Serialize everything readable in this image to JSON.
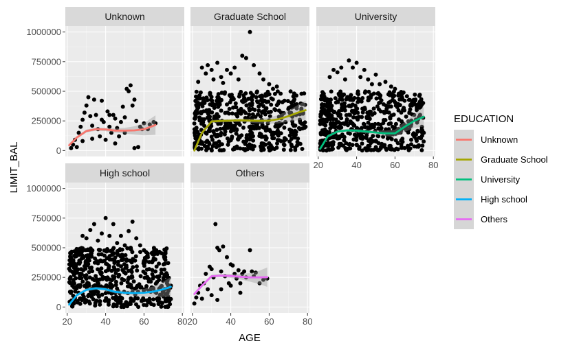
{
  "chart_data": {
    "type": "scatter",
    "xlabel": "AGE",
    "ylabel": "LIMIT_BAL",
    "xlim": [
      19,
      81
    ],
    "ylim": [
      -50000,
      1050000
    ],
    "x_ticks": [
      20,
      40,
      60,
      80
    ],
    "x_tick_labels": [
      "20",
      "40",
      "60",
      "80"
    ],
    "y_ticks": [
      0,
      250000,
      500000,
      750000,
      1000000
    ],
    "y_tick_labels": [
      "0",
      "250000",
      "500000",
      "750000",
      "1000000"
    ],
    "grid": true,
    "legend": {
      "title": "EDUCATION",
      "placement": "right",
      "entries": [
        "Unknown",
        "Graduate School",
        "University",
        "High school",
        "Others"
      ]
    },
    "series": [
      {
        "name": "Unknown",
        "color": "#F8766D",
        "age_range": [
          21,
          66
        ],
        "smooth_x": [
          21,
          25,
          30,
          35,
          40,
          45,
          50,
          55,
          60,
          66
        ],
        "smooth_y": [
          45000,
          110000,
          165000,
          180000,
          178000,
          168000,
          168000,
          170000,
          180000,
          215000
        ],
        "points": [
          [
            22,
            20000
          ],
          [
            23,
            50000
          ],
          [
            24,
            90000
          ],
          [
            25,
            30000
          ],
          [
            26,
            150000
          ],
          [
            27,
            200000
          ],
          [
            28,
            260000
          ],
          [
            29,
            320000
          ],
          [
            30,
            380000
          ],
          [
            31,
            450000
          ],
          [
            32,
            290000
          ],
          [
            33,
            210000
          ],
          [
            34,
            430000
          ],
          [
            35,
            300000
          ],
          [
            36,
            180000
          ],
          [
            37,
            120000
          ],
          [
            38,
            260000
          ],
          [
            39,
            240000
          ],
          [
            40,
            90000
          ],
          [
            41,
            330000
          ],
          [
            42,
            200000
          ],
          [
            43,
            150000
          ],
          [
            44,
            300000
          ],
          [
            45,
            270000
          ],
          [
            46,
            190000
          ],
          [
            47,
            120000
          ],
          [
            48,
            240000
          ],
          [
            49,
            370000
          ],
          [
            50,
            280000
          ],
          [
            51,
            520000
          ],
          [
            52,
            500000
          ],
          [
            53,
            550000
          ],
          [
            54,
            380000
          ],
          [
            55,
            430000
          ],
          [
            56,
            250000
          ],
          [
            57,
            30000
          ],
          [
            58,
            200000
          ],
          [
            59,
            180000
          ],
          [
            60,
            230000
          ],
          [
            62,
            180000
          ],
          [
            63,
            220000
          ],
          [
            65,
            240000
          ],
          [
            66,
            230000
          ],
          [
            33,
            100000
          ],
          [
            45,
            60000
          ],
          [
            38,
            420000
          ],
          [
            42,
            300000
          ],
          [
            50,
            150000
          ],
          [
            55,
            20000
          ],
          [
            28,
            80000
          ]
        ]
      },
      {
        "name": "Graduate School",
        "color": "#A3A500",
        "age_range": [
          21,
          79
        ],
        "smooth_x": [
          21,
          25,
          30,
          35,
          40,
          45,
          50,
          55,
          60,
          65,
          70,
          75,
          79
        ],
        "smooth_y": [
          0,
          150000,
          245000,
          250000,
          252000,
          255000,
          252000,
          250000,
          252000,
          265000,
          290000,
          320000,
          340000
        ],
        "points": [
          [
            23,
            580000
          ],
          [
            25,
            700000
          ],
          [
            27,
            650000
          ],
          [
            28,
            720000
          ],
          [
            30,
            680000
          ],
          [
            31,
            600000
          ],
          [
            33,
            740000
          ],
          [
            35,
            620000
          ],
          [
            36,
            570000
          ],
          [
            38,
            680000
          ],
          [
            40,
            650000
          ],
          [
            42,
            700000
          ],
          [
            44,
            600000
          ],
          [
            46,
            800000
          ],
          [
            48,
            780000
          ],
          [
            50,
            1000000
          ],
          [
            52,
            720000
          ],
          [
            55,
            650000
          ],
          [
            57,
            600000
          ],
          [
            60,
            560000
          ],
          [
            62,
            520000
          ],
          [
            64,
            540000
          ],
          [
            66,
            480000
          ],
          [
            68,
            420000
          ],
          [
            70,
            350000
          ],
          [
            72,
            380000
          ],
          [
            74,
            300000
          ],
          [
            76,
            260000
          ],
          [
            78,
            220000
          ],
          [
            79,
            200000
          ]
        ]
      },
      {
        "name": "University",
        "color": "#00BF7D",
        "age_range": [
          21,
          75
        ],
        "smooth_x": [
          21,
          25,
          30,
          35,
          40,
          45,
          50,
          55,
          60,
          65,
          70,
          75
        ],
        "smooth_y": [
          15000,
          120000,
          160000,
          170000,
          168000,
          160000,
          152000,
          145000,
          145000,
          200000,
          250000,
          285000
        ],
        "points": [
          [
            26,
            620000
          ],
          [
            28,
            680000
          ],
          [
            30,
            660000
          ],
          [
            32,
            700000
          ],
          [
            34,
            600000
          ],
          [
            36,
            760000
          ],
          [
            38,
            700000
          ],
          [
            40,
            740000
          ],
          [
            42,
            620000
          ],
          [
            44,
            680000
          ],
          [
            46,
            600000
          ],
          [
            48,
            560000
          ],
          [
            50,
            640000
          ],
          [
            52,
            560000
          ],
          [
            55,
            580000
          ],
          [
            58,
            540000
          ],
          [
            60,
            520000
          ],
          [
            62,
            480000
          ],
          [
            65,
            420000
          ],
          [
            68,
            380000
          ],
          [
            70,
            300000
          ],
          [
            72,
            260000
          ],
          [
            74,
            200000
          ],
          [
            75,
            150000
          ]
        ]
      },
      {
        "name": "High school",
        "color": "#00B0F6",
        "age_range": [
          21,
          74
        ],
        "smooth_x": [
          21,
          25,
          30,
          35,
          40,
          45,
          50,
          55,
          60,
          65,
          70,
          74
        ],
        "smooth_y": [
          20000,
          100000,
          145000,
          158000,
          150000,
          128000,
          120000,
          118000,
          120000,
          130000,
          150000,
          170000
        ],
        "points": [
          [
            28,
            600000
          ],
          [
            30,
            580000
          ],
          [
            32,
            650000
          ],
          [
            34,
            700000
          ],
          [
            36,
            560000
          ],
          [
            38,
            620000
          ],
          [
            40,
            750000
          ],
          [
            42,
            600000
          ],
          [
            44,
            700000
          ],
          [
            46,
            540000
          ],
          [
            48,
            600000
          ],
          [
            50,
            520000
          ],
          [
            52,
            640000
          ],
          [
            54,
            720000
          ],
          [
            56,
            580000
          ],
          [
            58,
            520000
          ],
          [
            60,
            480000
          ],
          [
            62,
            420000
          ],
          [
            64,
            380000
          ],
          [
            66,
            300000
          ],
          [
            68,
            260000
          ],
          [
            70,
            220000
          ],
          [
            72,
            200000
          ],
          [
            74,
            180000
          ]
        ]
      },
      {
        "name": "Others",
        "color": "#E76BF3",
        "age_range": [
          21,
          59
        ],
        "smooth_x": [
          21,
          25,
          30,
          35,
          40,
          45,
          50,
          55,
          59
        ],
        "smooth_y": [
          110000,
          180000,
          260000,
          265000,
          262000,
          255000,
          250000,
          250000,
          252000
        ],
        "points": [
          [
            21,
            30000
          ],
          [
            22,
            80000
          ],
          [
            23,
            120000
          ],
          [
            24,
            180000
          ],
          [
            25,
            70000
          ],
          [
            26,
            200000
          ],
          [
            27,
            280000
          ],
          [
            28,
            150000
          ],
          [
            29,
            340000
          ],
          [
            30,
            320000
          ],
          [
            31,
            250000
          ],
          [
            32,
            700000
          ],
          [
            33,
            500000
          ],
          [
            34,
            480000
          ],
          [
            35,
            300000
          ],
          [
            36,
            510000
          ],
          [
            37,
            260000
          ],
          [
            38,
            420000
          ],
          [
            39,
            200000
          ],
          [
            40,
            360000
          ],
          [
            41,
            350000
          ],
          [
            42,
            280000
          ],
          [
            43,
            240000
          ],
          [
            44,
            310000
          ],
          [
            45,
            200000
          ],
          [
            46,
            280000
          ],
          [
            47,
            300000
          ],
          [
            48,
            250000
          ],
          [
            50,
            480000
          ],
          [
            51,
            300000
          ],
          [
            52,
            260000
          ],
          [
            53,
            290000
          ],
          [
            55,
            200000
          ],
          [
            57,
            230000
          ],
          [
            59,
            240000
          ],
          [
            30,
            100000
          ],
          [
            35,
            150000
          ],
          [
            40,
            180000
          ],
          [
            45,
            120000
          ],
          [
            33,
            60000
          ]
        ]
      }
    ]
  }
}
